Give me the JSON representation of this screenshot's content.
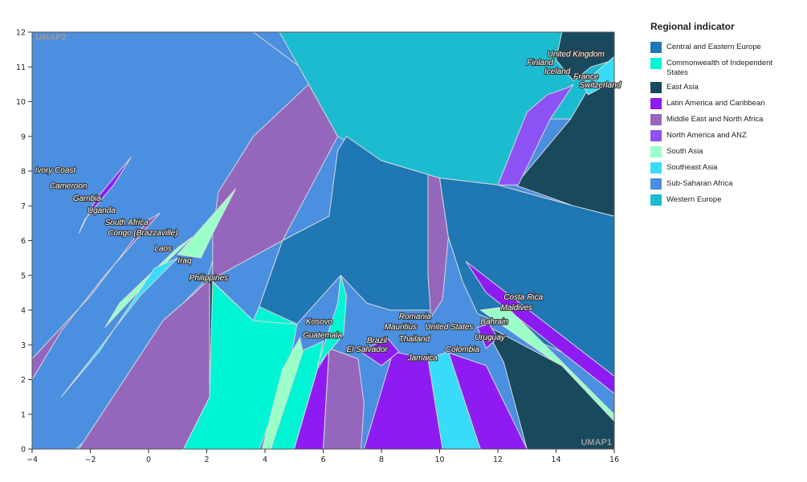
{
  "chart_data": {
    "type": "scatter",
    "title": "",
    "xlabel": "UMAP1",
    "ylabel": "UMAP2",
    "xlim": [
      -4,
      16
    ],
    "ylim": [
      0,
      12
    ],
    "x_ticks": [
      "−4",
      "−2",
      "0",
      "2",
      "4",
      "6",
      "8",
      "10",
      "12",
      "14",
      "16"
    ],
    "y_ticks": [
      "0",
      "1",
      "2",
      "3",
      "4",
      "5",
      "6",
      "7",
      "8",
      "9",
      "10",
      "11",
      "12"
    ],
    "grid": false,
    "legend": {
      "title": "Regional indicator",
      "placement": "right",
      "entries": [
        {
          "label": "Central and Eastern Europe",
          "color": "#1f77b4"
        },
        {
          "label": "Commonwealth of Independent States",
          "color": "#00f5d4"
        },
        {
          "label": "East Asia",
          "color": "#19495c"
        },
        {
          "label": "Latin America and Caribbean",
          "color": "#8e1cf2"
        },
        {
          "label": "Middle East and North Africa",
          "color": "#9467bd"
        },
        {
          "label": "North America and ANZ",
          "color": "#8c52f4"
        },
        {
          "label": "South Asia",
          "color": "#9affc8"
        },
        {
          "label": "Southeast Asia",
          "color": "#38dcf8"
        },
        {
          "label": "Sub-Saharan Africa",
          "color": "#4a8fe0"
        },
        {
          "label": "Western Europe",
          "color": "#1bbcd0"
        }
      ]
    },
    "labeled_points": [
      {
        "label": "United Kingdom",
        "x": 13.7,
        "y": 11.3
      },
      {
        "label": "Finland",
        "x": 13.0,
        "y": 11.05
      },
      {
        "label": "Iceland",
        "x": 13.6,
        "y": 10.8
      },
      {
        "label": "France",
        "x": 14.6,
        "y": 10.65
      },
      {
        "label": "Switzerland",
        "x": 14.8,
        "y": 10.4
      },
      {
        "label": "Ivory Coast",
        "x": -3.9,
        "y": 7.95
      },
      {
        "label": "Cameroon",
        "x": -3.4,
        "y": 7.5
      },
      {
        "label": "Gambia",
        "x": -2.6,
        "y": 7.15
      },
      {
        "label": "Uganda",
        "x": -2.1,
        "y": 6.8
      },
      {
        "label": "South Africa",
        "x": -1.5,
        "y": 6.45
      },
      {
        "label": "Congo (Brazzaville)",
        "x": -1.4,
        "y": 6.15
      },
      {
        "label": "Laos",
        "x": 0.2,
        "y": 5.7
      },
      {
        "label": "Iraq",
        "x": 1.0,
        "y": 5.35
      },
      {
        "label": "Philippines",
        "x": 1.4,
        "y": 4.85
      },
      {
        "label": "Kosovo",
        "x": 5.4,
        "y": 3.6
      },
      {
        "label": "Guatemala",
        "x": 5.3,
        "y": 3.2
      },
      {
        "label": "Brazil",
        "x": 7.5,
        "y": 3.05
      },
      {
        "label": "El Salvador",
        "x": 6.8,
        "y": 2.8
      },
      {
        "label": "Romania",
        "x": 8.6,
        "y": 3.75
      },
      {
        "label": "Mauritius",
        "x": 8.1,
        "y": 3.45
      },
      {
        "label": "United States",
        "x": 9.5,
        "y": 3.45
      },
      {
        "label": "Thailand",
        "x": 8.6,
        "y": 3.1
      },
      {
        "label": "Colombia",
        "x": 10.2,
        "y": 2.8
      },
      {
        "label": "Jamaica",
        "x": 8.9,
        "y": 2.55
      },
      {
        "label": "Costa Rica",
        "x": 12.2,
        "y": 4.3
      },
      {
        "label": "Maldives",
        "x": 12.1,
        "y": 4.0
      },
      {
        "label": "Bahrain",
        "x": 11.4,
        "y": 3.6
      },
      {
        "label": "Uruguay",
        "x": 11.2,
        "y": 3.15
      }
    ],
    "cells": [
      {
        "region": "Sub-Saharan Africa",
        "poly": [
          [
            -4,
            0
          ],
          [
            -2.5,
            0
          ],
          [
            -0.5,
            1.5
          ],
          [
            0.5,
            3.6
          ],
          [
            2,
            4.9
          ],
          [
            3,
            7.5
          ],
          [
            4,
            9
          ],
          [
            6,
            10.5
          ],
          [
            3.6,
            12
          ],
          [
            -4,
            12
          ]
        ]
      },
      {
        "region": "Western Europe",
        "poly": [
          [
            4.5,
            12
          ],
          [
            16,
            12
          ],
          [
            16,
            9
          ],
          [
            15,
            9.5
          ],
          [
            13,
            9.5
          ],
          [
            12,
            7.6
          ],
          [
            10,
            7.8
          ],
          [
            8,
            8.3
          ],
          [
            6.5,
            9
          ],
          [
            5.5,
            10.5
          ]
        ]
      },
      {
        "region": "East Asia",
        "poly": [
          [
            14.2,
            12
          ],
          [
            16,
            12
          ],
          [
            16,
            11.2
          ],
          [
            15.2,
            11
          ],
          [
            14.6,
            10.6
          ],
          [
            14,
            11.2
          ]
        ]
      },
      {
        "region": "East Asia",
        "poly": [
          [
            12.6,
            7.6
          ],
          [
            14.5,
            9.5
          ],
          [
            15.2,
            10.5
          ],
          [
            16,
            10.8
          ],
          [
            16,
            6.7
          ],
          [
            14.6,
            7
          ]
        ]
      },
      {
        "region": "Southeast Asia",
        "poly": [
          [
            14.9,
            10.5
          ],
          [
            16,
            11.3
          ],
          [
            16,
            10.6
          ],
          [
            15.1,
            10.2
          ]
        ]
      },
      {
        "region": "North America and ANZ",
        "poly": [
          [
            12,
            7.6
          ],
          [
            12.7,
            7.6
          ],
          [
            13.8,
            9.5
          ],
          [
            14.6,
            10.5
          ],
          [
            14.4,
            10.4
          ],
          [
            13.7,
            10.2
          ],
          [
            13,
            9.7
          ]
        ]
      },
      {
        "region": "Middle East and North Africa",
        "poly": [
          [
            2.2,
            4.9
          ],
          [
            4.6,
            6
          ],
          [
            6.5,
            9
          ],
          [
            5.5,
            10.5
          ],
          [
            3.6,
            9
          ],
          [
            2.4,
            7.4
          ],
          [
            2.2,
            6.2
          ]
        ]
      },
      {
        "region": "South Asia",
        "poly": [
          [
            1,
            5.6
          ],
          [
            3,
            7.5
          ],
          [
            2.2,
            6.2
          ],
          [
            1.8,
            5.5
          ]
        ]
      },
      {
        "region": "South Asia",
        "poly": [
          [
            -1.5,
            3.5
          ],
          [
            -1,
            4.2
          ],
          [
            1,
            5.8
          ],
          [
            1.5,
            6.1
          ],
          [
            0.4,
            5.2
          ]
        ]
      },
      {
        "region": "Southeast Asia",
        "poly": [
          [
            -3,
            1.5
          ],
          [
            -1.7,
            2.8
          ],
          [
            0.2,
            5.2
          ],
          [
            1,
            5.5
          ],
          [
            -0.3,
            4.4
          ],
          [
            -1.6,
            3
          ]
        ]
      },
      {
        "region": "Middle East and North Africa",
        "poly": [
          [
            -4,
            2.6
          ],
          [
            -2,
            4.4
          ],
          [
            0,
            6.6
          ],
          [
            0.4,
            6.8
          ],
          [
            -1.5,
            5
          ],
          [
            -3,
            3.4
          ],
          [
            -4,
            2
          ]
        ]
      },
      {
        "region": "Latin America and Caribbean",
        "poly": [
          [
            -1.2,
            7.6
          ],
          [
            -0.6,
            8.4
          ],
          [
            -1.8,
            7.2
          ],
          [
            -2.4,
            6.2
          ],
          [
            -2.2,
            6.6
          ]
        ]
      },
      {
        "region": "Middle East and North Africa",
        "poly": [
          [
            -2.4,
            0
          ],
          [
            1.2,
            0
          ],
          [
            2.1,
            1.5
          ],
          [
            2.1,
            4.9
          ],
          [
            1.6,
            4.5
          ],
          [
            0.5,
            3.7
          ]
        ]
      },
      {
        "region": "East Asia",
        "poly": [
          [
            2.1,
            1.5
          ],
          [
            2.1,
            4.9
          ],
          [
            3.6,
            3.7
          ],
          [
            3,
            3
          ]
        ]
      },
      {
        "region": "Commonwealth of Independent States",
        "poly": [
          [
            1.2,
            0
          ],
          [
            3.8,
            0
          ],
          [
            4.8,
            2.2
          ],
          [
            5.1,
            3.6
          ],
          [
            3.6,
            3.7
          ],
          [
            2.2,
            4.8
          ],
          [
            2.1,
            1.5
          ]
        ]
      },
      {
        "region": "Commonwealth of Independent States",
        "poly": [
          [
            3.6,
            3.7
          ],
          [
            4.9,
            3.6
          ],
          [
            6.6,
            5
          ],
          [
            6.9,
            4.8
          ],
          [
            6.2,
            6.7
          ],
          [
            4.6,
            6
          ],
          [
            3.8,
            4.1
          ]
        ]
      },
      {
        "region": "Central and Eastern Europe",
        "poly": [
          [
            3.8,
            4.1
          ],
          [
            4.6,
            6
          ],
          [
            6.2,
            6.7
          ],
          [
            6.5,
            8.6
          ],
          [
            6.8,
            9
          ],
          [
            8,
            8.3
          ],
          [
            9.6,
            7.9
          ],
          [
            10,
            7.8
          ],
          [
            10.3,
            6.1
          ],
          [
            9.7,
            4
          ],
          [
            8.3,
            4
          ],
          [
            7.5,
            4.2
          ],
          [
            6.6,
            5
          ],
          [
            5.1,
            3.6
          ]
        ]
      },
      {
        "region": "Middle East and North Africa",
        "poly": [
          [
            9.6,
            7.9
          ],
          [
            10,
            7.8
          ],
          [
            10.3,
            6.1
          ],
          [
            10.1,
            4.3
          ],
          [
            9.7,
            3.8
          ],
          [
            9.6,
            5
          ]
        ]
      },
      {
        "region": "Central and Eastern Europe",
        "poly": [
          [
            10,
            7.8
          ],
          [
            12,
            7.6
          ],
          [
            14.6,
            7
          ],
          [
            16,
            6.7
          ],
          [
            16,
            2.1
          ],
          [
            11.3,
            3.9
          ],
          [
            10.8,
            4.8
          ],
          [
            10.3,
            6.1
          ]
        ]
      },
      {
        "region": "Latin America and Caribbean",
        "poly": [
          [
            10.9,
            5.4
          ],
          [
            16,
            2.1
          ],
          [
            16,
            1.6
          ],
          [
            11.6,
            4.5
          ]
        ]
      },
      {
        "region": "South Asia",
        "poly": [
          [
            11.4,
            4
          ],
          [
            12.3,
            4.1
          ],
          [
            16,
            1.0
          ],
          [
            16,
            0.7
          ],
          [
            13.8,
            2.6
          ]
        ]
      },
      {
        "region": "East Asia",
        "poly": [
          [
            11.5,
            3.6
          ],
          [
            14.2,
            2.4
          ],
          [
            16,
            0.8
          ],
          [
            16,
            0
          ],
          [
            13,
            0
          ],
          [
            12.2,
            2.5
          ]
        ]
      },
      {
        "region": "Latin America and Caribbean",
        "poly": [
          [
            10.2,
            2.8
          ],
          [
            11.6,
            2.4
          ],
          [
            13,
            0
          ],
          [
            11.4,
            0
          ]
        ]
      },
      {
        "region": "Southeast Asia",
        "poly": [
          [
            9.6,
            2.6
          ],
          [
            10.3,
            2.8
          ],
          [
            11.4,
            0
          ],
          [
            10,
            0
          ]
        ]
      },
      {
        "region": "Latin America and Caribbean",
        "poly": [
          [
            7.4,
            0
          ],
          [
            10.1,
            0
          ],
          [
            9.6,
            2.6
          ],
          [
            8.4,
            2.8
          ]
        ]
      },
      {
        "region": "Middle East and North Africa",
        "poly": [
          [
            6,
            0
          ],
          [
            7.3,
            0
          ],
          [
            7.4,
            1.3
          ],
          [
            7.2,
            2.6
          ],
          [
            6.2,
            2.9
          ]
        ]
      },
      {
        "region": "Latin America and Caribbean",
        "poly": [
          [
            5,
            0
          ],
          [
            6,
            0
          ],
          [
            6.2,
            2.9
          ],
          [
            6.4,
            3.1
          ],
          [
            5.8,
            2.3
          ]
        ]
      },
      {
        "region": "Commonwealth of Independent States",
        "poly": [
          [
            4.2,
            0
          ],
          [
            5,
            0
          ],
          [
            5.8,
            2.3
          ],
          [
            6,
            3.1
          ],
          [
            5.2,
            2.8
          ]
        ]
      },
      {
        "region": "South Asia",
        "poly": [
          [
            3.9,
            0
          ],
          [
            4.2,
            0
          ],
          [
            5.3,
            2.8
          ],
          [
            5.2,
            3.2
          ],
          [
            4.6,
            2.3
          ]
        ]
      },
      {
        "region": "Commonwealth of Independent States",
        "poly": [
          [
            5.8,
            2.4
          ],
          [
            6.5,
            4.2
          ],
          [
            6.6,
            5
          ],
          [
            6.8,
            4.4
          ],
          [
            6.7,
            3.3
          ],
          [
            6.3,
            2.9
          ]
        ]
      },
      {
        "region": "Latin America and Caribbean",
        "poly": [
          [
            7.3,
            2.8
          ],
          [
            8.2,
            3.2
          ],
          [
            8.6,
            2.8
          ],
          [
            8,
            2.4
          ]
        ]
      },
      {
        "region": "Latin America and Caribbean",
        "poly": [
          [
            11.3,
            3.5
          ],
          [
            11.7,
            3.6
          ],
          [
            12,
            3.2
          ],
          [
            11.6,
            2.9
          ]
        ]
      }
    ]
  }
}
